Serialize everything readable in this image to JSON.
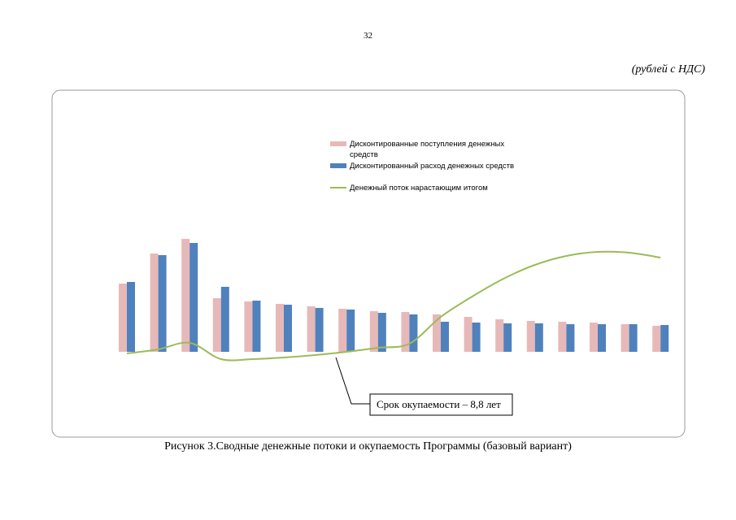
{
  "page_number": "32",
  "units_note": "(рублей с НДС)",
  "caption": "Рисунок 3.Сводные денежные потоки и окупаемость Программы (базовый вариант)",
  "chart_data": {
    "type": "bar",
    "categories": [
      null,
      null,
      null,
      null,
      null,
      null,
      null,
      null,
      null,
      null,
      null,
      null,
      null,
      null,
      null,
      null,
      null,
      null
    ],
    "series": [
      {
        "name": "Дисконтированные поступления денежных средств",
        "color": "#e6b9b8",
        "type": "bar",
        "values": [
          84,
          121,
          139,
          66,
          62,
          59,
          56,
          53,
          50,
          49,
          46,
          43,
          40,
          38,
          37,
          36,
          34,
          32
        ]
      },
      {
        "name": "Дисконтированный расход денежных средств",
        "color": "#4f81bd",
        "type": "bar",
        "values": [
          86,
          119,
          134,
          80,
          63,
          58,
          54,
          52,
          48,
          46,
          37,
          36,
          35,
          35,
          34,
          34,
          34,
          33
        ]
      },
      {
        "name": "Денежный поток  нарастающим итогом",
        "color": "#9bbb59",
        "type": "line",
        "values": [
          -2,
          3,
          11,
          -9,
          -9,
          -7,
          -4,
          0,
          5,
          10,
          43,
          68,
          90,
          107,
          118,
          123,
          122,
          116
        ]
      }
    ],
    "ylim": [
      -100,
      200
    ],
    "annotation": "Срок окупаемости – 8,8 лет"
  }
}
